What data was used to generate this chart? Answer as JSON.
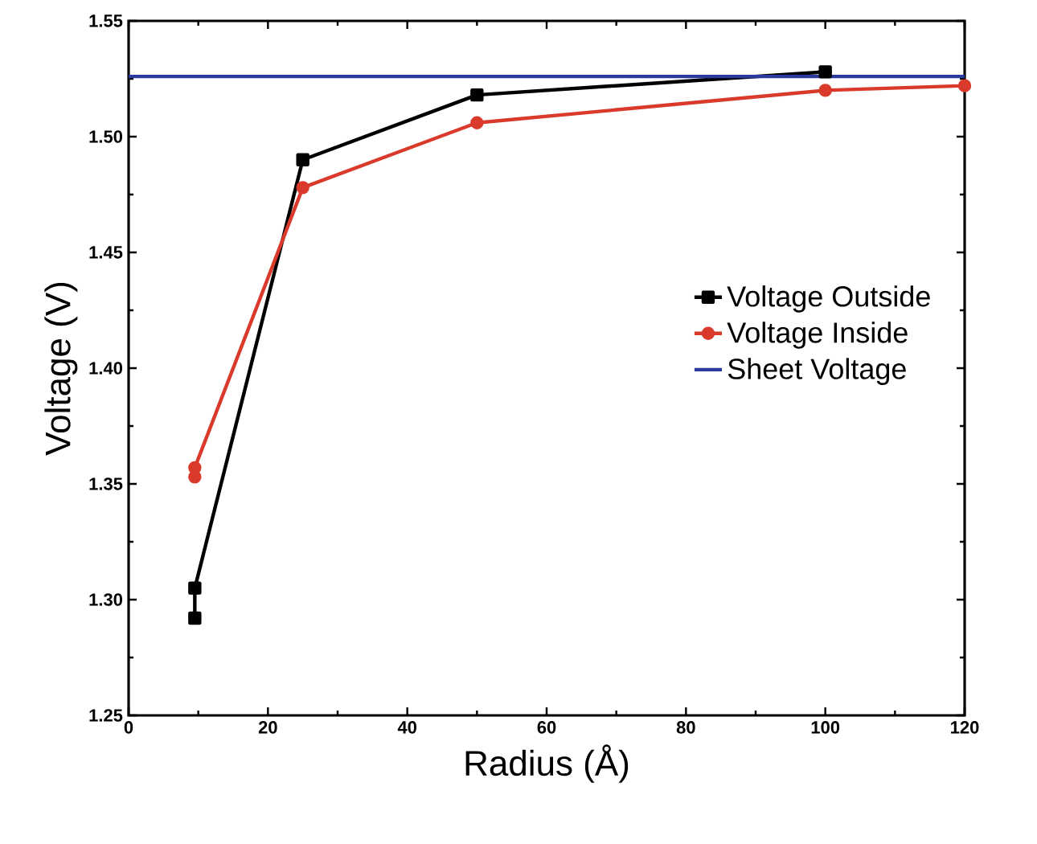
{
  "chart_data": {
    "type": "line",
    "xlabel": "Radius (Å)",
    "ylabel": "Voltage (V)",
    "xlim": [
      0,
      120
    ],
    "ylim": [
      1.25,
      1.55
    ],
    "xticks": [
      0,
      20,
      40,
      60,
      80,
      100,
      120
    ],
    "yticks": [
      {
        "value": 1.25,
        "label": "1.25"
      },
      {
        "value": 1.3,
        "label": "1.30"
      },
      {
        "value": 1.35,
        "label": "1.35"
      },
      {
        "value": 1.4,
        "label": "1.40"
      },
      {
        "value": 1.45,
        "label": "1.45"
      },
      {
        "value": 1.5,
        "label": "1.50"
      },
      {
        "value": 1.55,
        "label": "1.55"
      }
    ],
    "legend": "right",
    "grid": false,
    "series": [
      {
        "name": "Voltage Outside",
        "color": "#000000",
        "marker": "square",
        "x": [
          9.5,
          9.5,
          25,
          50,
          100
        ],
        "values": [
          1.292,
          1.305,
          1.49,
          1.518,
          1.528
        ]
      },
      {
        "name": "Voltage Inside",
        "color": "#d93a2b",
        "marker": "circle",
        "x": [
          9.5,
          9.5,
          25,
          50,
          100,
          120
        ],
        "values": [
          1.353,
          1.357,
          1.478,
          1.506,
          1.52,
          1.522
        ]
      },
      {
        "name": "Sheet Voltage",
        "color": "#2b3a9c",
        "marker": "none",
        "x": [
          0,
          120
        ],
        "values": [
          1.526,
          1.526
        ]
      }
    ]
  }
}
